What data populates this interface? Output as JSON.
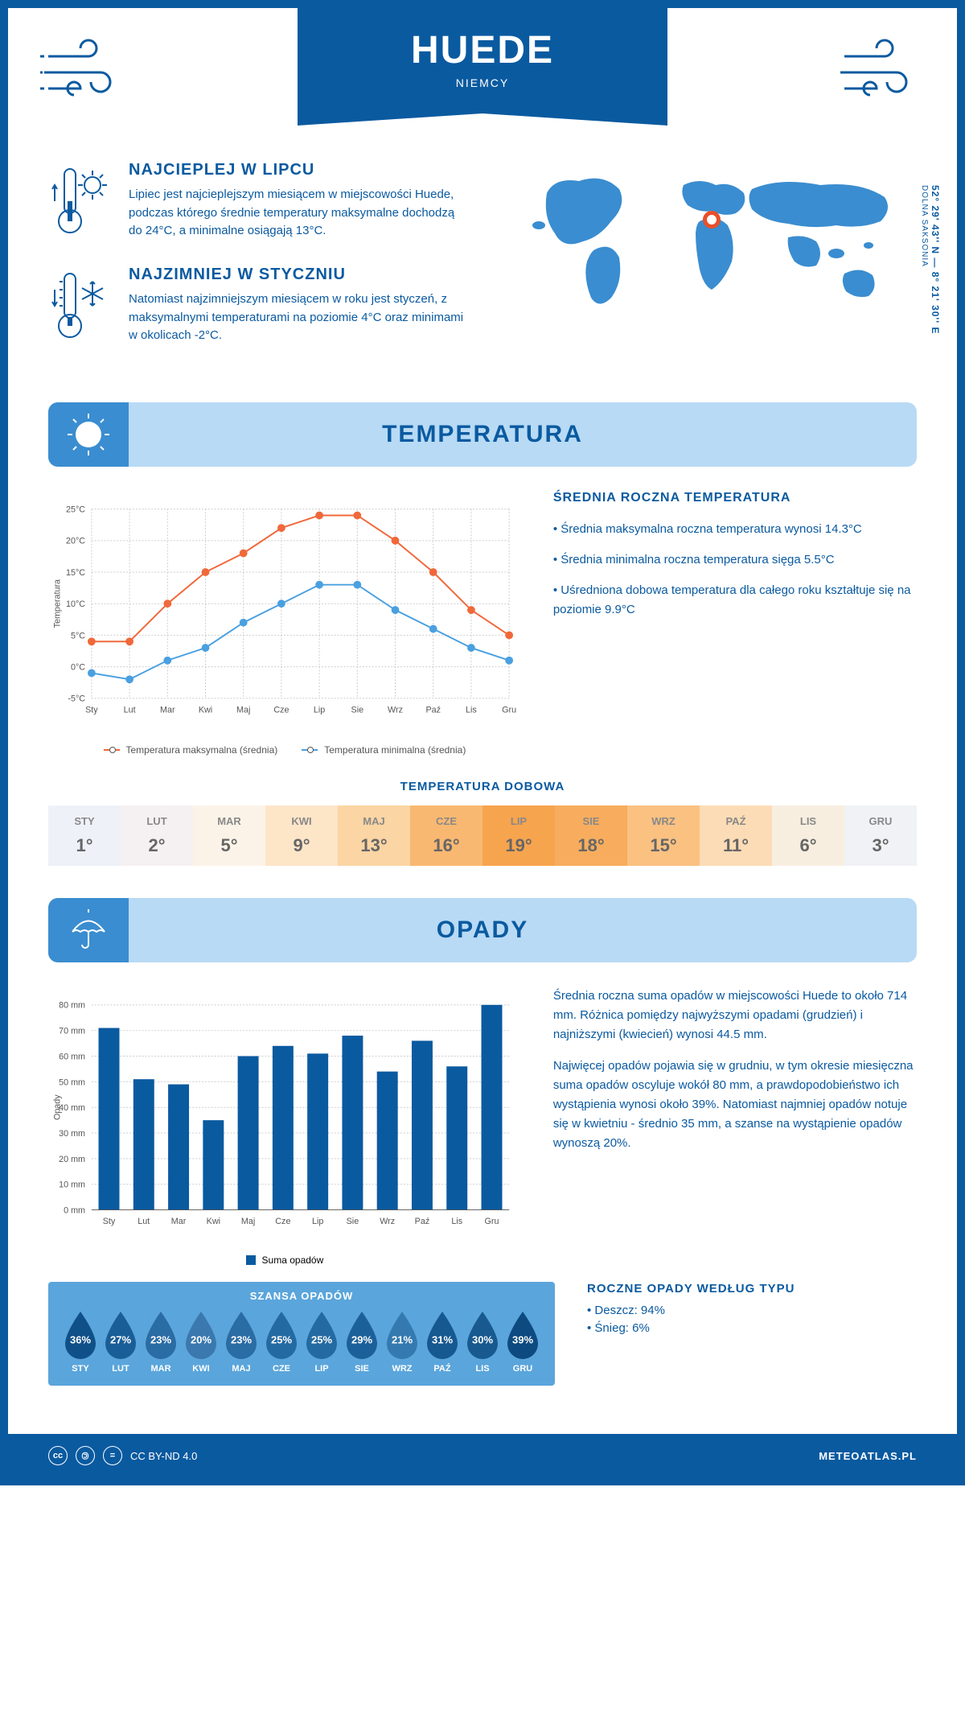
{
  "header": {
    "title": "HUEDE",
    "subtitle": "NIEMCY"
  },
  "coords": "52° 29' 43'' N — 8° 21' 30'' E",
  "region": "DOLNA SAKSONIA",
  "facts": {
    "hot": {
      "title": "NAJCIEPLEJ W LIPCU",
      "text": "Lipiec jest najcieplejszym miesiącem w miejscowości Huede, podczas którego średnie temperatury maksymalne dochodzą do 24°C, a minimalne osiągają 13°C."
    },
    "cold": {
      "title": "NAJZIMNIEJ W STYCZNIU",
      "text": "Natomiast najzimniejszym miesiącem w roku jest styczeń, z maksymalnymi temperaturami na poziomie 4°C oraz minimami w okolicach -2°C."
    }
  },
  "sections": {
    "temp": "TEMPERATURA",
    "precip": "OPADY"
  },
  "months": [
    "Sty",
    "Lut",
    "Mar",
    "Kwi",
    "Maj",
    "Cze",
    "Lip",
    "Sie",
    "Wrz",
    "Paź",
    "Lis",
    "Gru"
  ],
  "months_upper": [
    "STY",
    "LUT",
    "MAR",
    "KWI",
    "MAJ",
    "CZE",
    "LIP",
    "SIE",
    "WRZ",
    "PAŹ",
    "LIS",
    "GRU"
  ],
  "temp_chart": {
    "type": "line",
    "ylabel": "Temperatura",
    "ylim": [
      -5,
      25
    ],
    "ytick_step": 5,
    "ytick_labels": [
      "-5°C",
      "0°C",
      "5°C",
      "10°C",
      "15°C",
      "20°C",
      "25°C"
    ],
    "max_values": [
      4,
      4,
      10,
      15,
      18,
      22,
      24,
      24,
      20,
      15,
      9,
      5
    ],
    "min_values": [
      -1,
      -2,
      1,
      3,
      7,
      10,
      13,
      13,
      9,
      6,
      3,
      1
    ],
    "max_color": "#f0683a",
    "min_color": "#4aa0e0",
    "grid_color": "#cccccc",
    "legend_max": "Temperatura maksymalna (średnia)",
    "legend_min": "Temperatura minimalna (średnia)"
  },
  "temp_info": {
    "title": "ŚREDNIA ROCZNA TEMPERATURA",
    "p1": "• Średnia maksymalna roczna temperatura wynosi 14.3°C",
    "p2": "• Średnia minimalna roczna temperatura sięga 5.5°C",
    "p3": "• Uśredniona dobowa temperatura dla całego roku kształtuje się na poziomie 9.9°C"
  },
  "dobowa": {
    "title": "TEMPERATURA DOBOWA",
    "values": [
      "1°",
      "2°",
      "5°",
      "9°",
      "13°",
      "16°",
      "19°",
      "18°",
      "15°",
      "11°",
      "6°",
      "3°"
    ],
    "colors": [
      "#eef1f8",
      "#f5f0f2",
      "#fcf3e8",
      "#fde5c8",
      "#fbd5a3",
      "#f9b871",
      "#f7a44e",
      "#f7ad5d",
      "#fac181",
      "#fcdcb6",
      "#f8eee0",
      "#f0f2f5"
    ]
  },
  "precip_chart": {
    "type": "bar",
    "ylabel": "Opady",
    "ylim": [
      0,
      80
    ],
    "ytick_step": 10,
    "ytick_labels": [
      "0 mm",
      "10 mm",
      "20 mm",
      "30 mm",
      "40 mm",
      "50 mm",
      "60 mm",
      "70 mm",
      "80 mm"
    ],
    "values": [
      71,
      51,
      49,
      35,
      60,
      64,
      61,
      68,
      54,
      66,
      56,
      80
    ],
    "bar_color": "#0a5aa0",
    "grid_color": "#cccccc",
    "legend": "Suma opadów"
  },
  "precip_info": {
    "p1": "Średnia roczna suma opadów w miejscowości Huede to około 714 mm. Różnica pomiędzy najwyższymi opadami (grudzień) i najniższymi (kwiecień) wynosi 44.5 mm.",
    "p2": "Najwięcej opadów pojawia się w grudniu, w tym okresie miesięczna suma opadów oscyluje wokół 80 mm, a prawdopodobieństwo ich wystąpienia wynosi około 39%. Natomiast najmniej opadów notuje się w kwietniu - średnio 35 mm, a szanse na wystąpienie opadów wynoszą 20%."
  },
  "szansa": {
    "title": "SZANSA OPADÓW",
    "values": [
      "36%",
      "27%",
      "23%",
      "20%",
      "23%",
      "25%",
      "25%",
      "29%",
      "21%",
      "31%",
      "30%",
      "39%"
    ],
    "colors": [
      "#105088",
      "#1a5e98",
      "#2a6ca4",
      "#3a78ae",
      "#2a6ca4",
      "#246aa2",
      "#246aa2",
      "#1c609a",
      "#347ab0",
      "#165890",
      "#18598f",
      "#0c4a80"
    ]
  },
  "typ": {
    "title": "ROCZNE OPADY WEDŁUG TYPU",
    "p1": "• Deszcz: 94%",
    "p2": "• Śnieg: 6%"
  },
  "footer": {
    "license": "CC BY-ND 4.0",
    "site": "METEOATLAS.PL"
  }
}
